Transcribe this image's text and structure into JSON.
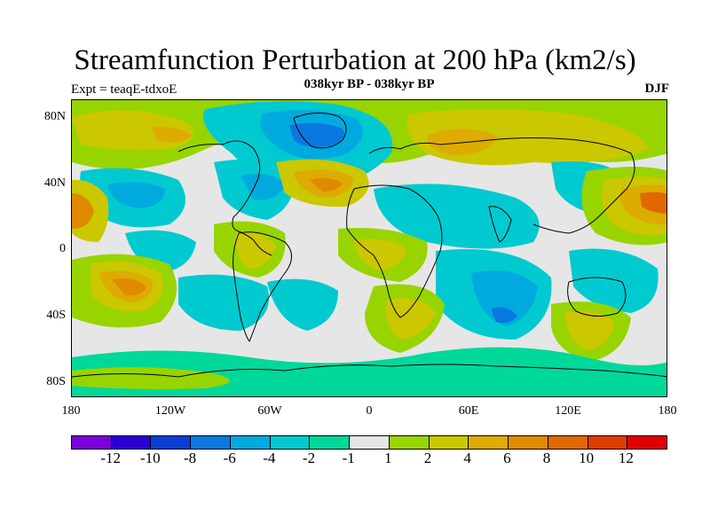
{
  "title": "Streamfunction Perturbation at 200 hPa (km2/s)",
  "subtitle": "038kyr BP - 038kyr BP",
  "left_label": "Expt = teaqE-tdxoE",
  "right_label": "DJF",
  "map": {
    "lat_labels": [
      "80N",
      "40N",
      "0",
      "40S",
      "80S"
    ],
    "lon_labels": [
      "180",
      "120W",
      "60W",
      "0",
      "60E",
      "120E",
      "180"
    ],
    "background_color": "#e6e6e6"
  },
  "colorbar": {
    "colors": [
      "#7b00dc",
      "#2a00d5",
      "#0a3fd6",
      "#0a78e0",
      "#00aade",
      "#00cad0",
      "#00d89a",
      "#e6e6e6",
      "#98d400",
      "#cbc700",
      "#deab00",
      "#e08a00",
      "#e06800",
      "#e03c00",
      "#e00000"
    ],
    "labels": [
      "-12",
      "-10",
      "-8",
      "-6",
      "-4",
      "-2",
      "-1",
      "1",
      "2",
      "4",
      "6",
      "8",
      "10",
      "12"
    ]
  }
}
